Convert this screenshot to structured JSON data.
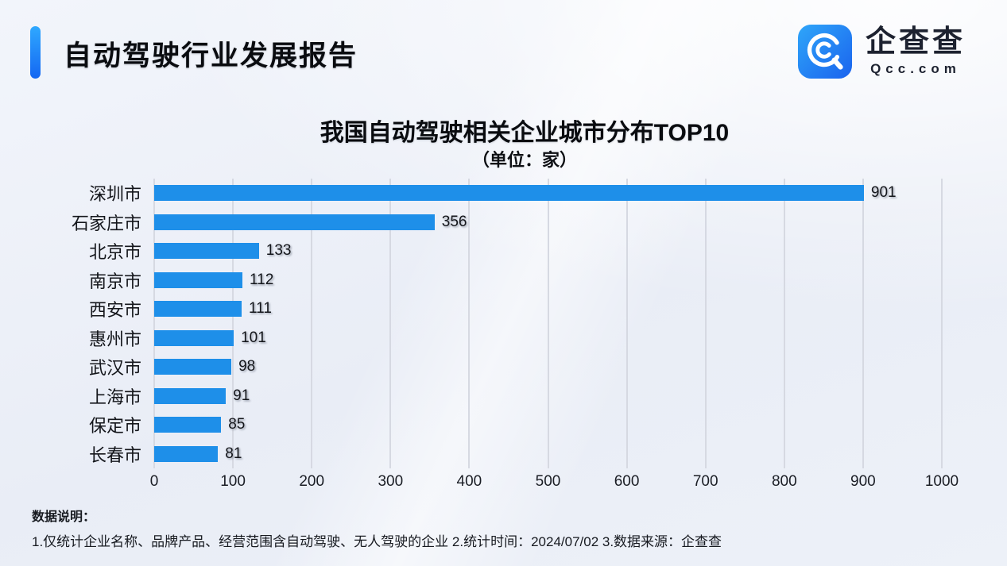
{
  "header": {
    "title": "自动驾驶行业发展报告"
  },
  "logo": {
    "brand": "企查查",
    "domain": "Qcc.com",
    "icon_gradient_start": "#2fa6f9",
    "icon_gradient_end": "#1a63ee"
  },
  "chart_data": {
    "type": "bar",
    "orientation": "horizontal",
    "title": "我国自动驾驶相关企业城市分布TOP10",
    "subtitle": "（单位：家）",
    "unit": "家",
    "categories": [
      "深圳市",
      "石家庄市",
      "北京市",
      "南京市",
      "西安市",
      "惠州市",
      "武汉市",
      "上海市",
      "保定市",
      "长春市"
    ],
    "values": [
      901,
      356,
      133,
      112,
      111,
      101,
      98,
      91,
      85,
      81
    ],
    "xlim": [
      0,
      1000
    ],
    "x_ticks": [
      0,
      100,
      200,
      300,
      400,
      500,
      600,
      700,
      800,
      900,
      1000
    ],
    "grid": true,
    "legend": false,
    "bar_color": "#1e8fe9",
    "gridline_color": "#d6d9e2"
  },
  "footer": {
    "label": "数据说明：",
    "notes": "1.仅统计企业名称、品牌产品、经营范围含自动驾驶、无人驾驶的企业  2.统计时间：2024/07/02   3.数据来源：企查查"
  }
}
